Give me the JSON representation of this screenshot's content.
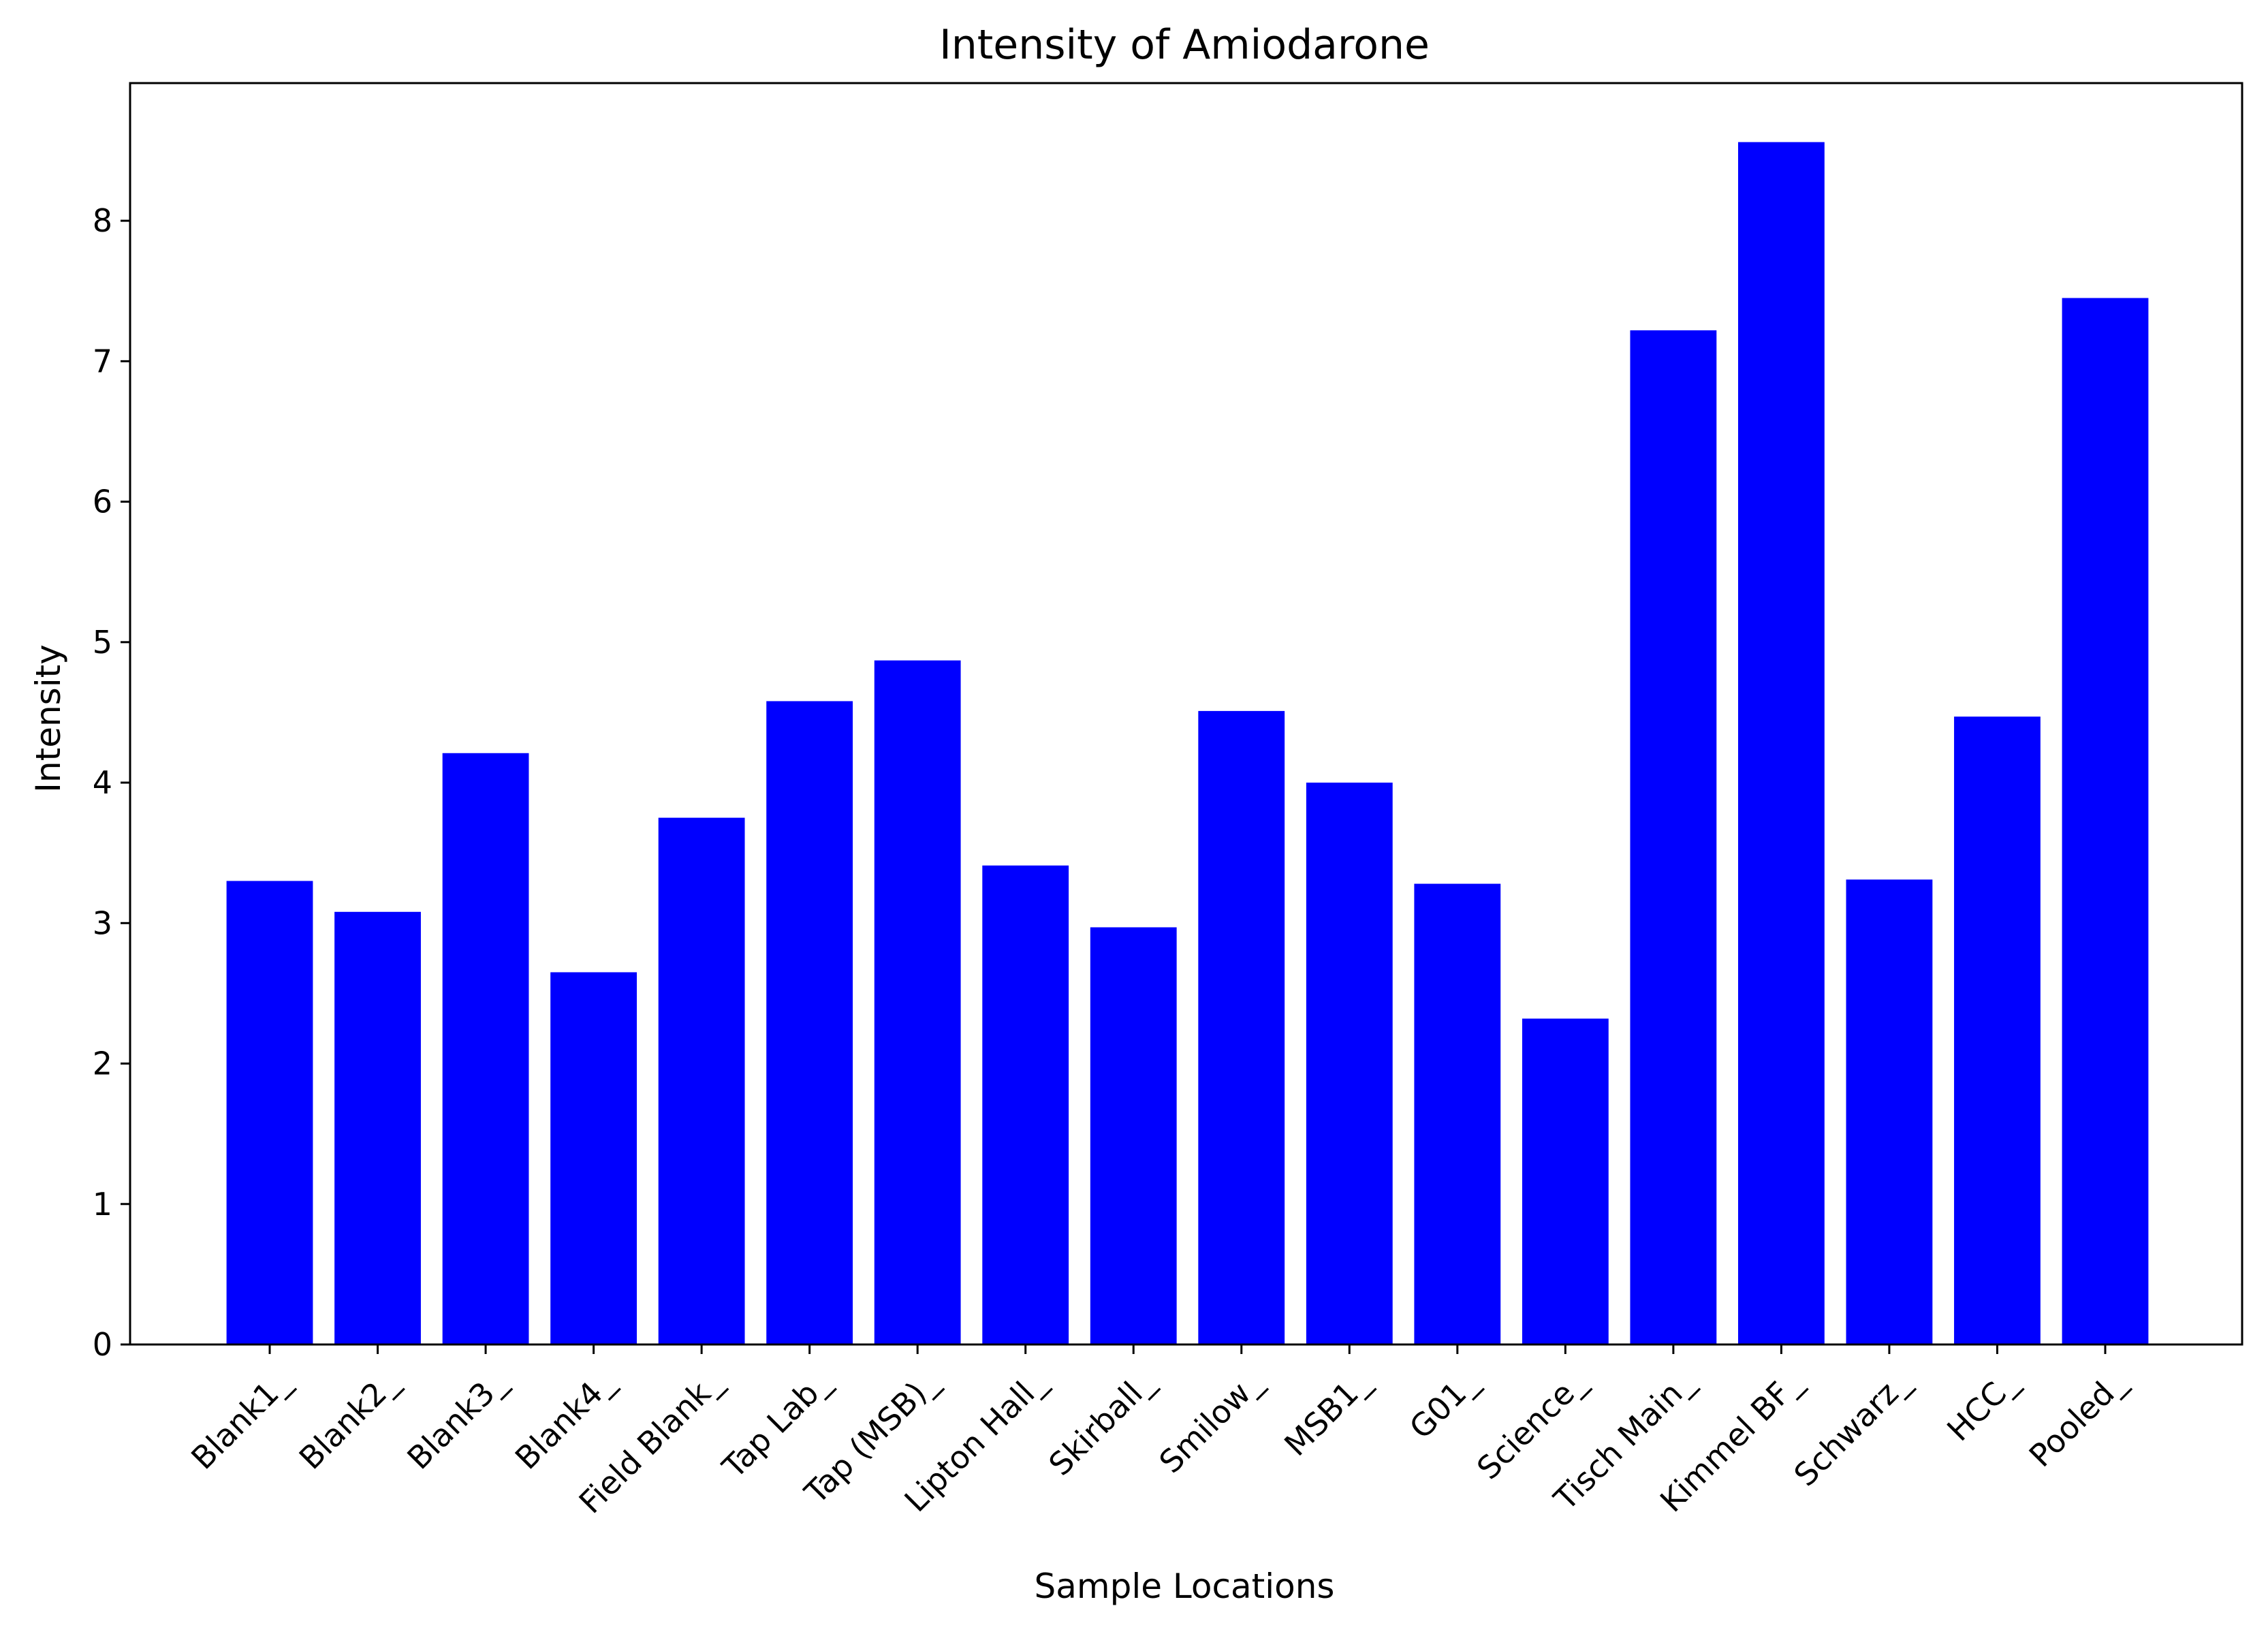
{
  "chart_data": {
    "type": "bar",
    "title": "Intensity of Amiodarone",
    "xlabel": "Sample Locations",
    "ylabel": "Intensity",
    "categories": [
      "Blank1_",
      "Blank2_",
      "Blank3_",
      "Blank4_",
      "Field Blank_",
      "Tap Lab_",
      "Tap (MSB)_",
      "Lipton Hall_",
      "Skirball_",
      "Smilow_",
      "MSB1_",
      "G01_",
      "Science_",
      "Tisch Main_",
      "Kimmel BF_",
      "Schwarz_",
      "HCC_",
      "Pooled_"
    ],
    "values": [
      3.3,
      3.08,
      4.21,
      2.65,
      3.75,
      4.58,
      4.87,
      3.41,
      2.97,
      4.51,
      4.0,
      3.28,
      2.32,
      7.22,
      8.56,
      3.31,
      4.47,
      7.45
    ],
    "ylim": [
      0,
      8.98
    ],
    "yticks": [
      0,
      1,
      2,
      3,
      4,
      5,
      6,
      7,
      8
    ],
    "ytick_labels": [
      "0",
      "1",
      "2",
      "3",
      "4",
      "5",
      "6",
      "7",
      "8"
    ],
    "bar_color": "#0000ff",
    "grid": false,
    "legend": "none"
  }
}
